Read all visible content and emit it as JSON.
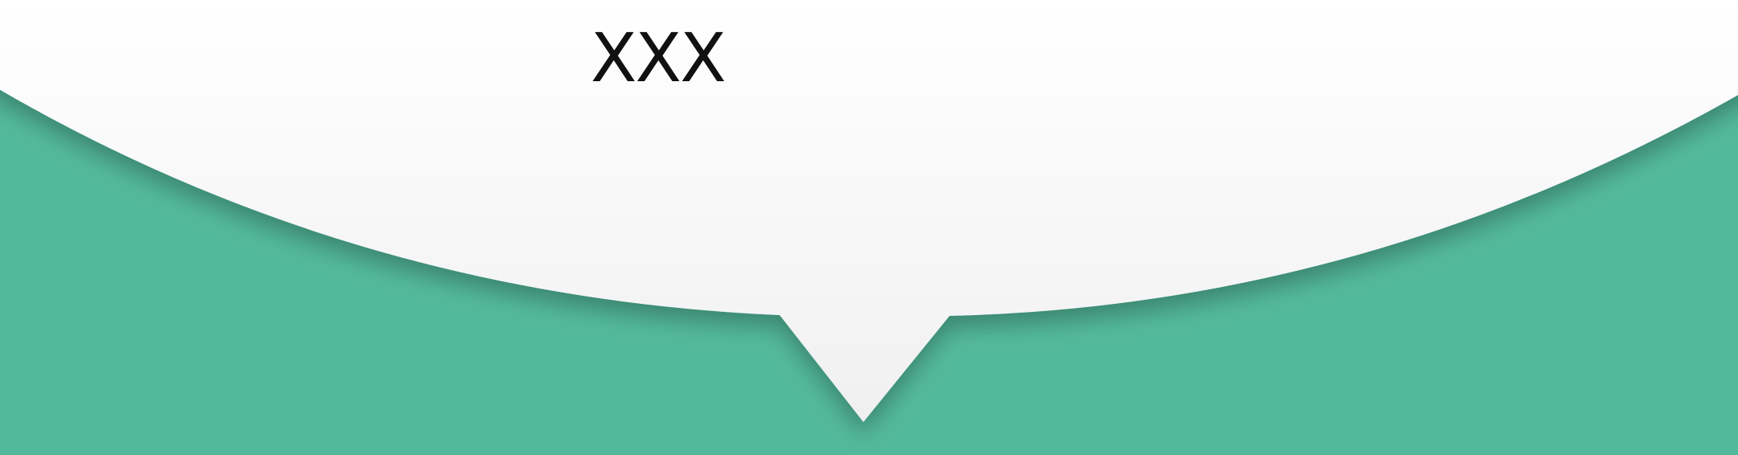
{
  "header": {
    "title": "XXX"
  },
  "colors": {
    "background": "#53b99b",
    "bubble_top": "#ffffff",
    "bubble_bottom": "#f0f0f0",
    "text": "#111111"
  }
}
